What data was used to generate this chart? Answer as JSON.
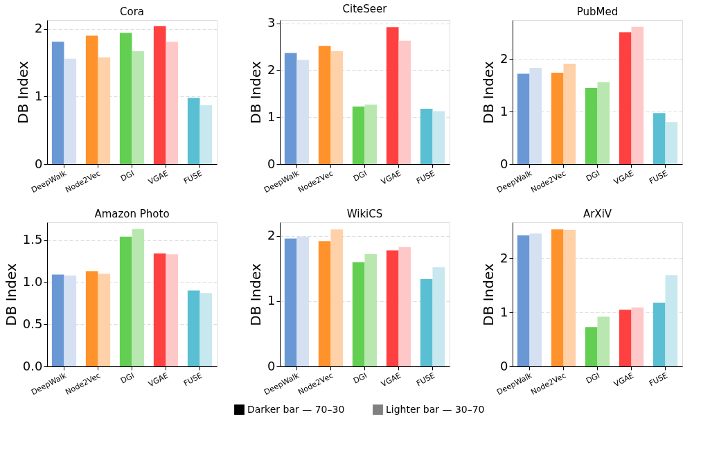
{
  "chart_data": [
    {
      "type": "bar",
      "title": "Cora",
      "ylabel": "DB Index",
      "categories": [
        "DeepWalk",
        "Node2Vec",
        "DGI",
        "VGAE",
        "FUSE"
      ],
      "legend": "bottom",
      "grid": "y",
      "ylim": [
        0,
        2.13
      ],
      "yticks": [
        0,
        1,
        2
      ],
      "series": [
        {
          "name": "Darker bar — 70–30",
          "color": "#000000",
          "colors": [
            "#6a98d4",
            "#ff922b",
            "#63cf52",
            "#ff4040",
            "#5bbfd4"
          ],
          "values": [
            1.81,
            1.9,
            1.94,
            2.04,
            0.98
          ]
        },
        {
          "name": "Lighter bar — 30–70",
          "color": "#808080",
          "colors": [
            "#d5e1f3",
            "#ffd1a8",
            "#b8e8b0",
            "#ffc8c8",
            "#c6e8ee"
          ],
          "values": [
            1.56,
            1.58,
            1.67,
            1.81,
            0.87
          ]
        }
      ]
    },
    {
      "type": "bar",
      "title": "CiteSeer",
      "ylabel": "DB Index",
      "categories": [
        "DeepWalk",
        "Node2Vec",
        "DGI",
        "VGAE",
        "FUSE"
      ],
      "grid": "y",
      "ylim": [
        0,
        3.07
      ],
      "yticks": [
        0,
        1,
        2,
        3
      ],
      "series": [
        {
          "colors": [
            "#6a98d4",
            "#ff922b",
            "#63cf52",
            "#ff4040",
            "#5bbfd4"
          ],
          "values": [
            2.37,
            2.52,
            1.23,
            2.92,
            1.18
          ]
        },
        {
          "colors": [
            "#d5e1f3",
            "#ffd1a8",
            "#b8e8b0",
            "#ffc8c8",
            "#c6e8ee"
          ],
          "values": [
            2.22,
            2.41,
            1.27,
            2.63,
            1.13
          ]
        }
      ]
    },
    {
      "type": "bar",
      "title": "PubMed",
      "ylabel": "DB Index",
      "categories": [
        "DeepWalk",
        "Node2Vec",
        "DGI",
        "VGAE",
        "FUSE"
      ],
      "grid": "y",
      "ylim": [
        0,
        2.74
      ],
      "yticks": [
        0,
        1,
        2
      ],
      "series": [
        {
          "colors": [
            "#6a98d4",
            "#ff922b",
            "#63cf52",
            "#ff4040",
            "#5bbfd4"
          ],
          "values": [
            1.72,
            1.74,
            1.45,
            2.51,
            0.97
          ]
        },
        {
          "colors": [
            "#d5e1f3",
            "#ffd1a8",
            "#b8e8b0",
            "#ffc8c8",
            "#c6e8ee"
          ],
          "values": [
            1.83,
            1.91,
            1.56,
            2.61,
            0.8
          ]
        }
      ]
    },
    {
      "type": "bar",
      "title": "Amazon Photo",
      "ylabel": "DB Index",
      "categories": [
        "DeepWalk",
        "Node2Vec",
        "DGI",
        "VGAE",
        "FUSE"
      ],
      "grid": "y",
      "ylim": [
        0,
        1.71
      ],
      "yticks": [
        {
          "value": 0,
          "label": "0.0"
        },
        0.5,
        {
          "value": 1,
          "label": "1.0"
        },
        1.5
      ],
      "series": [
        {
          "colors": [
            "#6a98d4",
            "#ff922b",
            "#63cf52",
            "#ff4040",
            "#5bbfd4"
          ],
          "values": [
            1.09,
            1.13,
            1.54,
            1.34,
            0.9
          ]
        },
        {
          "colors": [
            "#d5e1f3",
            "#ffd1a8",
            "#b8e8b0",
            "#ffc8c8",
            "#c6e8ee"
          ],
          "values": [
            1.08,
            1.1,
            1.63,
            1.33,
            0.87
          ]
        }
      ]
    },
    {
      "type": "bar",
      "title": "WikiCS",
      "ylabel": "DB Index",
      "categories": [
        "DeepWalk",
        "Node2Vec",
        "DGI",
        "VGAE",
        "FUSE"
      ],
      "grid": "y",
      "ylim": [
        0,
        2.21
      ],
      "yticks": [
        0,
        1,
        2
      ],
      "series": [
        {
          "colors": [
            "#6a98d4",
            "#ff922b",
            "#63cf52",
            "#ff4040",
            "#5bbfd4"
          ],
          "values": [
            1.96,
            1.92,
            1.6,
            1.78,
            1.34
          ]
        },
        {
          "colors": [
            "#d5e1f3",
            "#ffd1a8",
            "#b8e8b0",
            "#ffc8c8",
            "#c6e8ee"
          ],
          "values": [
            1.99,
            2.1,
            1.72,
            1.83,
            1.52
          ]
        }
      ]
    },
    {
      "type": "bar",
      "title": "ArXiV",
      "ylabel": "DB Index",
      "categories": [
        "DeepWalk",
        "Node2Vec",
        "DGI",
        "VGAE",
        "FUSE"
      ],
      "grid": "y",
      "ylim": [
        0,
        2.67
      ],
      "yticks": [
        0,
        1,
        2
      ],
      "series": [
        {
          "colors": [
            "#6a98d4",
            "#ff922b",
            "#63cf52",
            "#ff4040",
            "#5bbfd4"
          ],
          "values": [
            2.43,
            2.54,
            0.73,
            1.05,
            1.18
          ]
        },
        {
          "colors": [
            "#d5e1f3",
            "#ffd1a8",
            "#b8e8b0",
            "#ffc8c8",
            "#c6e8ee"
          ],
          "values": [
            2.46,
            2.53,
            0.92,
            1.09,
            1.69
          ]
        }
      ]
    }
  ]
}
